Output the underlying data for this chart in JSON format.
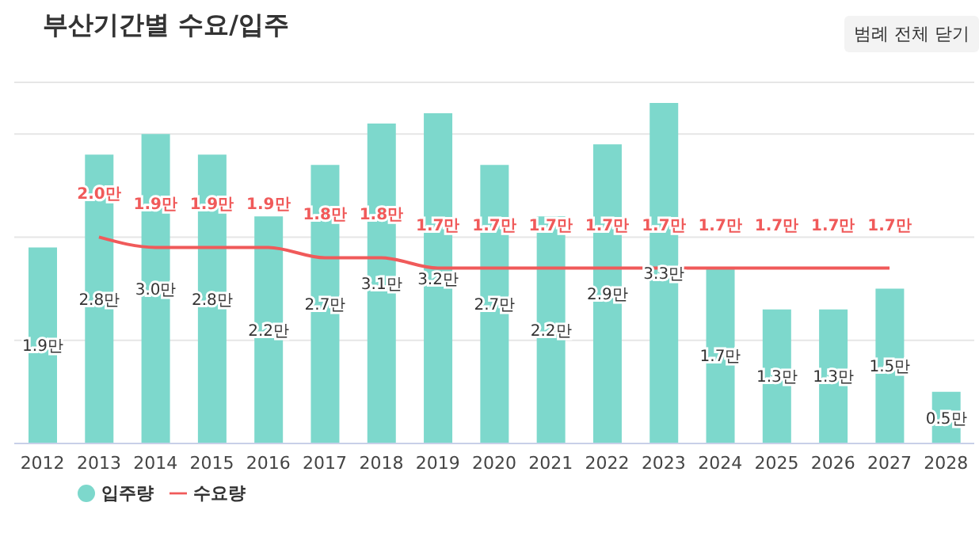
{
  "chart_data": {
    "type": "bar",
    "title": "부산기간별 수요/입주",
    "categories": [
      "2012",
      "2013",
      "2014",
      "2015",
      "2016",
      "2017",
      "2018",
      "2019",
      "2020",
      "2021",
      "2022",
      "2023",
      "2024",
      "2025",
      "2026",
      "2027",
      "2028"
    ],
    "series": [
      {
        "name": "입주량",
        "color": "#7dd8cc",
        "values": [
          1.9,
          2.8,
          3.0,
          2.8,
          2.2,
          2.7,
          3.1,
          3.2,
          2.7,
          2.2,
          2.9,
          3.3,
          1.7,
          1.3,
          1.3,
          1.5,
          0.5
        ],
        "value_labels": [
          "1.9만",
          "2.8만",
          "3.0만",
          "2.8만",
          "2.2만",
          "2.7만",
          "3.1만",
          "3.2만",
          "2.7만",
          "2.2만",
          "2.9만",
          "3.3만",
          "1.7만",
          "1.3만",
          "1.3만",
          "1.5만",
          "0.5만"
        ]
      },
      {
        "name": "수요량",
        "type": "line",
        "color": "#f05a5a",
        "values": [
          null,
          2.0,
          1.9,
          1.9,
          1.9,
          1.8,
          1.8,
          1.7,
          1.7,
          1.7,
          1.7,
          1.7,
          1.7,
          1.7,
          1.7,
          1.7,
          null
        ],
        "value_labels": [
          null,
          "2.0만",
          "1.9만",
          "1.9만",
          "1.9만",
          "1.8만",
          "1.8만",
          "1.7만",
          "1.7만",
          "1.7만",
          "1.7만",
          "1.7만",
          "1.7만",
          "1.7만",
          "1.7만",
          "1.7만",
          null
        ]
      }
    ],
    "ylim": [
      0,
      3.5
    ],
    "yticks": [
      {
        "value": 0,
        "label": null
      },
      {
        "value": 1,
        "label": null
      },
      {
        "value": 2,
        "label": null
      },
      {
        "value": 3,
        "label": null
      }
    ],
    "tick_labels": "x",
    "grid": "y",
    "legend": "bottom left",
    "marker": "none",
    "line_style": "solid",
    "annotations": [
      "범례 전체 닫기"
    ]
  }
}
